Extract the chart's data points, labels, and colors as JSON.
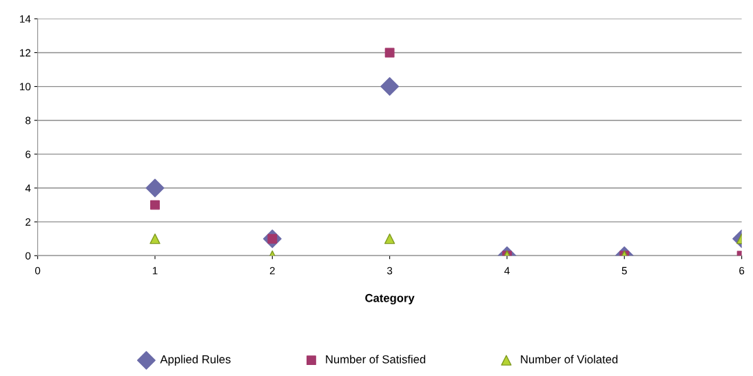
{
  "chart_data": {
    "type": "scatter",
    "xlabel": "Category",
    "x": [
      1,
      2,
      3,
      4,
      5,
      6
    ],
    "series": [
      {
        "name": "Applied Rules",
        "color": "#6b6ba8",
        "marker": "diamond",
        "values": [
          4,
          1,
          10,
          0,
          0,
          1
        ]
      },
      {
        "name": "Number of Satisfied",
        "color": "#a3386b",
        "marker": "square",
        "values": [
          3,
          1,
          12,
          0,
          0,
          0
        ]
      },
      {
        "name": "Number of Violated",
        "color": "#b5d334",
        "marker": "triangle",
        "values": [
          1,
          0,
          1,
          0,
          0,
          1
        ]
      }
    ],
    "xlim": [
      0,
      6
    ],
    "xticks": [
      0,
      1,
      2,
      3,
      4,
      5,
      6
    ],
    "ylim": [
      0,
      14
    ],
    "yticks": [
      0,
      2,
      4,
      6,
      8,
      10,
      12,
      14
    ],
    "grid": "y",
    "legend": "bottom"
  }
}
